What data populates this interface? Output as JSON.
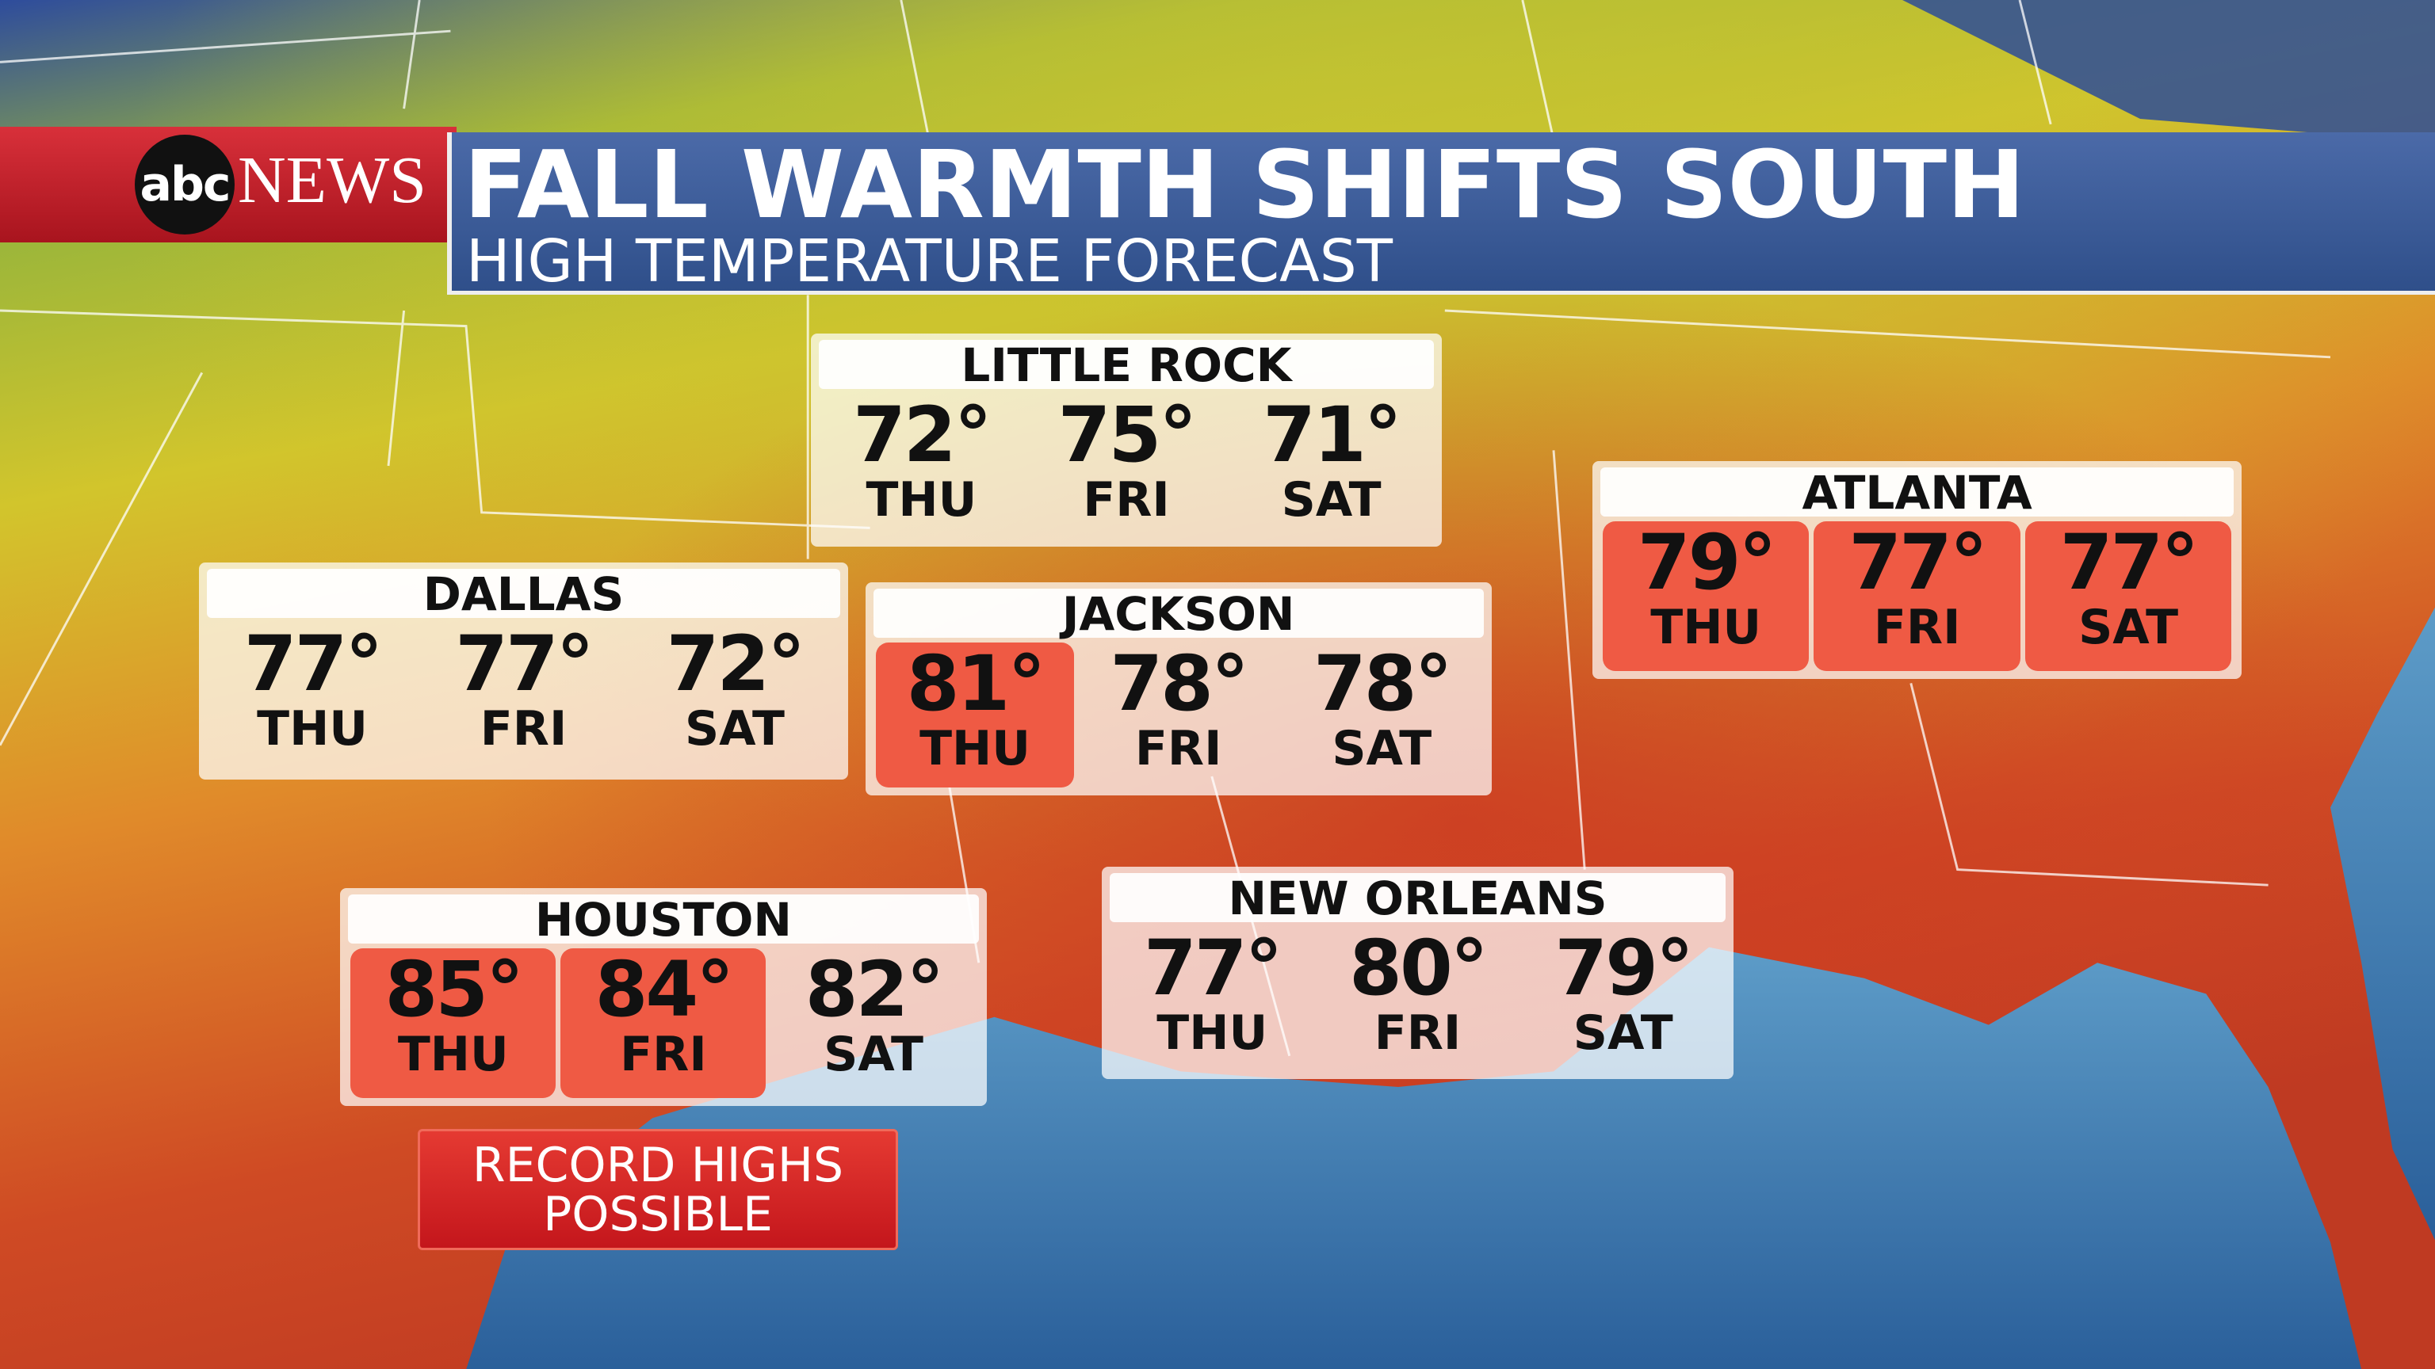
{
  "header": {
    "logo": "abc",
    "network": "NEWS",
    "title": "FALL WARMTH SHIFTS SOUTH",
    "subtitle": "HIGH TEMPERATURE FORECAST"
  },
  "cities": [
    {
      "name": "LITTLE ROCK",
      "days": [
        {
          "day": "THU",
          "temp": "72°",
          "highlight": false
        },
        {
          "day": "FRI",
          "temp": "75°",
          "highlight": false
        },
        {
          "day": "SAT",
          "temp": "71°",
          "highlight": false
        }
      ]
    },
    {
      "name": "DALLAS",
      "days": [
        {
          "day": "THU",
          "temp": "77°",
          "highlight": false
        },
        {
          "day": "FRI",
          "temp": "77°",
          "highlight": false
        },
        {
          "day": "SAT",
          "temp": "72°",
          "highlight": false
        }
      ]
    },
    {
      "name": "JACKSON",
      "days": [
        {
          "day": "THU",
          "temp": "81°",
          "highlight": true
        },
        {
          "day": "FRI",
          "temp": "78°",
          "highlight": false
        },
        {
          "day": "SAT",
          "temp": "78°",
          "highlight": false
        }
      ]
    },
    {
      "name": "ATLANTA",
      "days": [
        {
          "day": "THU",
          "temp": "79°",
          "highlight": true
        },
        {
          "day": "FRI",
          "temp": "77°",
          "highlight": true
        },
        {
          "day": "SAT",
          "temp": "77°",
          "highlight": true
        }
      ]
    },
    {
      "name": "HOUSTON",
      "days": [
        {
          "day": "THU",
          "temp": "85°",
          "highlight": true
        },
        {
          "day": "FRI",
          "temp": "84°",
          "highlight": true
        },
        {
          "day": "SAT",
          "temp": "82°",
          "highlight": false
        }
      ]
    },
    {
      "name": "NEW ORLEANS",
      "days": [
        {
          "day": "THU",
          "temp": "77°",
          "highlight": false
        },
        {
          "day": "FRI",
          "temp": "80°",
          "highlight": false
        },
        {
          "day": "SAT",
          "temp": "79°",
          "highlight": false
        }
      ]
    }
  ],
  "note": {
    "lines": [
      "RECORD HIGHS",
      "POSSIBLE"
    ]
  }
}
